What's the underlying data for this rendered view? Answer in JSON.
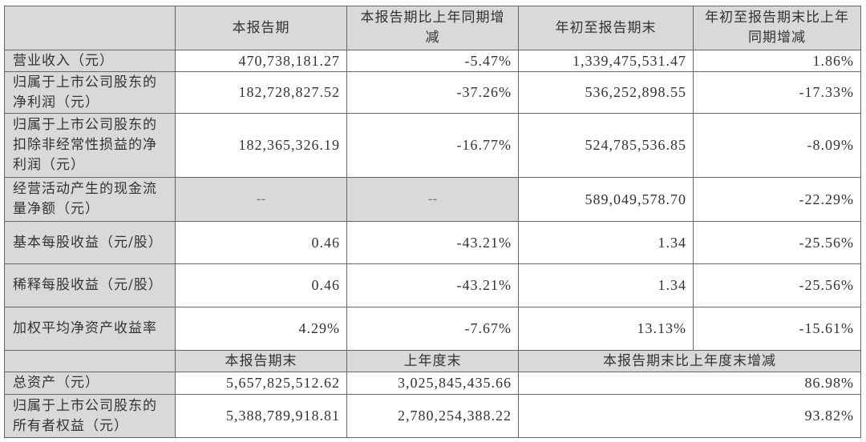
{
  "header": {
    "blank": "",
    "columns": [
      "本报告期",
      "本报告期比上年同期增减",
      "年初至报告期末",
      "年初至报告期末比上年同期增减"
    ]
  },
  "rows": [
    {
      "label": "营业收入（元）",
      "values": [
        "470,738,181.27",
        "-5.47%",
        "1,339,475,531.47",
        "1.86%"
      ]
    },
    {
      "label": "归属于上市公司股东的净利润（元）",
      "values": [
        "182,728,827.52",
        "-37.26%",
        "536,252,898.55",
        "-17.33%"
      ]
    },
    {
      "label": "归属于上市公司股东的扣除非经常性损益的净利润（元）",
      "values": [
        "182,365,326.19",
        "-16.77%",
        "524,785,536.85",
        "-8.09%"
      ]
    },
    {
      "label": "经营活动产生的现金流量净额（元）",
      "values": [
        "--",
        "--",
        "589,049,578.70",
        "-22.29%"
      ]
    },
    {
      "label": "基本每股收益（元/股）",
      "values": [
        "0.46",
        "-43.21%",
        "1.34",
        "-25.56%"
      ]
    },
    {
      "label": "稀释每股收益（元/股）",
      "values": [
        "0.46",
        "-43.21%",
        "1.34",
        "-25.56%"
      ]
    },
    {
      "label": "加权平均净资产收益率",
      "values": [
        "4.29%",
        "-7.67%",
        "13.13%",
        "-15.61%"
      ]
    }
  ],
  "balance_header": {
    "columns": [
      "本报告期末",
      "上年度末",
      "本报告期末比上年度末增减"
    ]
  },
  "balance_rows": [
    {
      "label": "总资产（元）",
      "values": [
        "5,657,825,512.62",
        "3,025,845,435.66",
        "86.98%"
      ]
    },
    {
      "label": "归属于上市公司股东的所有者权益（元）",
      "values": [
        "5,388,789,918.81",
        "2,780,254,388.22",
        "93.82%"
      ]
    }
  ]
}
